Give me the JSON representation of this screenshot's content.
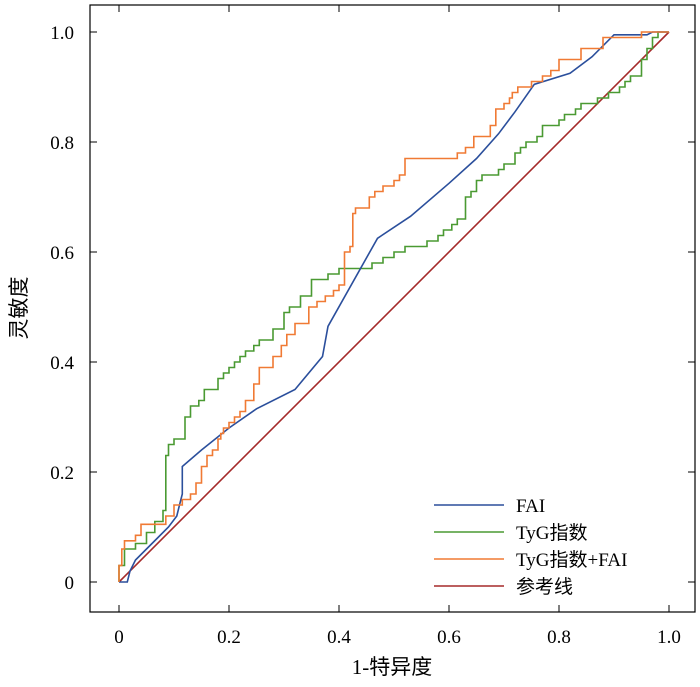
{
  "chart_data": {
    "type": "line",
    "title": "",
    "xlabel": "1-特异度",
    "ylabel": "灵敏度",
    "xlim": [
      0,
      1.0
    ],
    "ylim": [
      0,
      1.0
    ],
    "x_ticks": [
      "0",
      "0.2",
      "0.4",
      "0.6",
      "0.8",
      "1.0"
    ],
    "y_ticks": [
      "0",
      "0.2",
      "0.4",
      "0.6",
      "0.8",
      "1.0"
    ],
    "x_tick_values": [
      0,
      0.2,
      0.4,
      0.6,
      0.8,
      1.0
    ],
    "y_tick_values": [
      0,
      0.2,
      0.4,
      0.6,
      0.8,
      1.0
    ],
    "grid": false,
    "legend_position": "bottom-right",
    "series": [
      {
        "name": "FAI",
        "color": "#2b4f9c",
        "points": [
          [
            0,
            0
          ],
          [
            0.015,
            0
          ],
          [
            0.02,
            0.02
          ],
          [
            0.03,
            0.04
          ],
          [
            0.05,
            0.06
          ],
          [
            0.07,
            0.08
          ],
          [
            0.09,
            0.1
          ],
          [
            0.105,
            0.12
          ],
          [
            0.11,
            0.14
          ],
          [
            0.115,
            0.16
          ],
          [
            0.115,
            0.21
          ],
          [
            0.15,
            0.24
          ],
          [
            0.2,
            0.28
          ],
          [
            0.25,
            0.315
          ],
          [
            0.32,
            0.35
          ],
          [
            0.37,
            0.41
          ],
          [
            0.38,
            0.465
          ],
          [
            0.47,
            0.625
          ],
          [
            0.53,
            0.665
          ],
          [
            0.6,
            0.725
          ],
          [
            0.65,
            0.77
          ],
          [
            0.69,
            0.815
          ],
          [
            0.72,
            0.855
          ],
          [
            0.755,
            0.905
          ],
          [
            0.82,
            0.925
          ],
          [
            0.86,
            0.955
          ],
          [
            0.9,
            0.995
          ],
          [
            0.96,
            0.995
          ],
          [
            0.97,
            1.0
          ],
          [
            1.0,
            1.0
          ]
        ]
      },
      {
        "name": "TyG指数",
        "color": "#4a9a32",
        "points": [
          [
            0,
            0
          ],
          [
            0,
            0.03
          ],
          [
            0.01,
            0.03
          ],
          [
            0.01,
            0.06
          ],
          [
            0.03,
            0.06
          ],
          [
            0.03,
            0.07
          ],
          [
            0.05,
            0.07
          ],
          [
            0.05,
            0.09
          ],
          [
            0.065,
            0.09
          ],
          [
            0.065,
            0.11
          ],
          [
            0.08,
            0.11
          ],
          [
            0.08,
            0.13
          ],
          [
            0.085,
            0.13
          ],
          [
            0.085,
            0.23
          ],
          [
            0.09,
            0.23
          ],
          [
            0.09,
            0.25
          ],
          [
            0.1,
            0.25
          ],
          [
            0.1,
            0.26
          ],
          [
            0.12,
            0.26
          ],
          [
            0.12,
            0.3
          ],
          [
            0.13,
            0.3
          ],
          [
            0.13,
            0.32
          ],
          [
            0.145,
            0.32
          ],
          [
            0.145,
            0.33
          ],
          [
            0.155,
            0.33
          ],
          [
            0.155,
            0.35
          ],
          [
            0.18,
            0.35
          ],
          [
            0.18,
            0.37
          ],
          [
            0.19,
            0.37
          ],
          [
            0.19,
            0.38
          ],
          [
            0.2,
            0.38
          ],
          [
            0.2,
            0.39
          ],
          [
            0.21,
            0.39
          ],
          [
            0.21,
            0.4
          ],
          [
            0.22,
            0.4
          ],
          [
            0.22,
            0.41
          ],
          [
            0.23,
            0.41
          ],
          [
            0.23,
            0.42
          ],
          [
            0.245,
            0.42
          ],
          [
            0.245,
            0.43
          ],
          [
            0.255,
            0.43
          ],
          [
            0.255,
            0.44
          ],
          [
            0.28,
            0.44
          ],
          [
            0.28,
            0.46
          ],
          [
            0.3,
            0.46
          ],
          [
            0.3,
            0.49
          ],
          [
            0.31,
            0.49
          ],
          [
            0.31,
            0.5
          ],
          [
            0.33,
            0.5
          ],
          [
            0.33,
            0.52
          ],
          [
            0.35,
            0.52
          ],
          [
            0.35,
            0.55
          ],
          [
            0.38,
            0.55
          ],
          [
            0.38,
            0.56
          ],
          [
            0.4,
            0.56
          ],
          [
            0.4,
            0.57
          ],
          [
            0.46,
            0.57
          ],
          [
            0.46,
            0.58
          ],
          [
            0.48,
            0.58
          ],
          [
            0.48,
            0.59
          ],
          [
            0.5,
            0.59
          ],
          [
            0.5,
            0.6
          ],
          [
            0.52,
            0.6
          ],
          [
            0.52,
            0.61
          ],
          [
            0.56,
            0.61
          ],
          [
            0.56,
            0.62
          ],
          [
            0.58,
            0.62
          ],
          [
            0.58,
            0.63
          ],
          [
            0.59,
            0.63
          ],
          [
            0.59,
            0.64
          ],
          [
            0.605,
            0.64
          ],
          [
            0.605,
            0.65
          ],
          [
            0.615,
            0.65
          ],
          [
            0.615,
            0.66
          ],
          [
            0.63,
            0.66
          ],
          [
            0.63,
            0.7
          ],
          [
            0.64,
            0.7
          ],
          [
            0.64,
            0.71
          ],
          [
            0.65,
            0.71
          ],
          [
            0.65,
            0.73
          ],
          [
            0.66,
            0.73
          ],
          [
            0.66,
            0.74
          ],
          [
            0.69,
            0.74
          ],
          [
            0.69,
            0.75
          ],
          [
            0.7,
            0.75
          ],
          [
            0.7,
            0.76
          ],
          [
            0.72,
            0.76
          ],
          [
            0.72,
            0.78
          ],
          [
            0.73,
            0.78
          ],
          [
            0.73,
            0.79
          ],
          [
            0.74,
            0.79
          ],
          [
            0.74,
            0.8
          ],
          [
            0.76,
            0.8
          ],
          [
            0.76,
            0.81
          ],
          [
            0.77,
            0.81
          ],
          [
            0.77,
            0.83
          ],
          [
            0.8,
            0.83
          ],
          [
            0.8,
            0.84
          ],
          [
            0.81,
            0.84
          ],
          [
            0.81,
            0.85
          ],
          [
            0.83,
            0.85
          ],
          [
            0.83,
            0.86
          ],
          [
            0.84,
            0.86
          ],
          [
            0.84,
            0.87
          ],
          [
            0.87,
            0.87
          ],
          [
            0.87,
            0.88
          ],
          [
            0.89,
            0.88
          ],
          [
            0.89,
            0.89
          ],
          [
            0.91,
            0.89
          ],
          [
            0.91,
            0.9
          ],
          [
            0.92,
            0.9
          ],
          [
            0.92,
            0.91
          ],
          [
            0.93,
            0.91
          ],
          [
            0.93,
            0.92
          ],
          [
            0.95,
            0.92
          ],
          [
            0.95,
            0.95
          ],
          [
            0.96,
            0.95
          ],
          [
            0.96,
            0.97
          ],
          [
            0.97,
            0.97
          ],
          [
            0.97,
            0.99
          ],
          [
            0.98,
            0.99
          ],
          [
            0.98,
            1.0
          ],
          [
            1.0,
            1.0
          ]
        ]
      },
      {
        "name": "TyG指数+FAI",
        "color": "#f07a34",
        "points": [
          [
            0,
            0
          ],
          [
            0,
            0.03
          ],
          [
            0.005,
            0.03
          ],
          [
            0.005,
            0.06
          ],
          [
            0.01,
            0.06
          ],
          [
            0.01,
            0.075
          ],
          [
            0.03,
            0.075
          ],
          [
            0.03,
            0.085
          ],
          [
            0.04,
            0.085
          ],
          [
            0.04,
            0.105
          ],
          [
            0.085,
            0.105
          ],
          [
            0.085,
            0.12
          ],
          [
            0.1,
            0.12
          ],
          [
            0.1,
            0.14
          ],
          [
            0.115,
            0.14
          ],
          [
            0.115,
            0.15
          ],
          [
            0.13,
            0.15
          ],
          [
            0.13,
            0.16
          ],
          [
            0.14,
            0.16
          ],
          [
            0.14,
            0.18
          ],
          [
            0.15,
            0.18
          ],
          [
            0.15,
            0.21
          ],
          [
            0.16,
            0.21
          ],
          [
            0.16,
            0.23
          ],
          [
            0.17,
            0.23
          ],
          [
            0.17,
            0.24
          ],
          [
            0.18,
            0.24
          ],
          [
            0.18,
            0.26
          ],
          [
            0.185,
            0.26
          ],
          [
            0.185,
            0.27
          ],
          [
            0.19,
            0.27
          ],
          [
            0.19,
            0.28
          ],
          [
            0.2,
            0.28
          ],
          [
            0.2,
            0.29
          ],
          [
            0.21,
            0.29
          ],
          [
            0.21,
            0.3
          ],
          [
            0.22,
            0.3
          ],
          [
            0.22,
            0.31
          ],
          [
            0.23,
            0.31
          ],
          [
            0.23,
            0.33
          ],
          [
            0.245,
            0.33
          ],
          [
            0.245,
            0.36
          ],
          [
            0.255,
            0.36
          ],
          [
            0.255,
            0.39
          ],
          [
            0.28,
            0.39
          ],
          [
            0.28,
            0.41
          ],
          [
            0.295,
            0.41
          ],
          [
            0.295,
            0.43
          ],
          [
            0.305,
            0.43
          ],
          [
            0.305,
            0.45
          ],
          [
            0.32,
            0.45
          ],
          [
            0.32,
            0.47
          ],
          [
            0.345,
            0.47
          ],
          [
            0.345,
            0.5
          ],
          [
            0.36,
            0.5
          ],
          [
            0.36,
            0.51
          ],
          [
            0.375,
            0.51
          ],
          [
            0.375,
            0.52
          ],
          [
            0.39,
            0.52
          ],
          [
            0.39,
            0.53
          ],
          [
            0.4,
            0.53
          ],
          [
            0.4,
            0.54
          ],
          [
            0.41,
            0.54
          ],
          [
            0.41,
            0.6
          ],
          [
            0.42,
            0.6
          ],
          [
            0.42,
            0.61
          ],
          [
            0.425,
            0.61
          ],
          [
            0.425,
            0.67
          ],
          [
            0.43,
            0.67
          ],
          [
            0.43,
            0.68
          ],
          [
            0.455,
            0.68
          ],
          [
            0.455,
            0.7
          ],
          [
            0.465,
            0.7
          ],
          [
            0.465,
            0.71
          ],
          [
            0.48,
            0.71
          ],
          [
            0.48,
            0.72
          ],
          [
            0.5,
            0.72
          ],
          [
            0.5,
            0.73
          ],
          [
            0.51,
            0.73
          ],
          [
            0.51,
            0.74
          ],
          [
            0.52,
            0.74
          ],
          [
            0.52,
            0.77
          ],
          [
            0.615,
            0.77
          ],
          [
            0.615,
            0.78
          ],
          [
            0.63,
            0.78
          ],
          [
            0.63,
            0.79
          ],
          [
            0.645,
            0.79
          ],
          [
            0.645,
            0.81
          ],
          [
            0.675,
            0.81
          ],
          [
            0.675,
            0.83
          ],
          [
            0.685,
            0.83
          ],
          [
            0.685,
            0.86
          ],
          [
            0.7,
            0.86
          ],
          [
            0.7,
            0.87
          ],
          [
            0.71,
            0.87
          ],
          [
            0.71,
            0.88
          ],
          [
            0.715,
            0.88
          ],
          [
            0.715,
            0.89
          ],
          [
            0.725,
            0.89
          ],
          [
            0.725,
            0.9
          ],
          [
            0.75,
            0.9
          ],
          [
            0.75,
            0.91
          ],
          [
            0.77,
            0.91
          ],
          [
            0.77,
            0.92
          ],
          [
            0.785,
            0.92
          ],
          [
            0.785,
            0.93
          ],
          [
            0.8,
            0.93
          ],
          [
            0.8,
            0.95
          ],
          [
            0.84,
            0.95
          ],
          [
            0.84,
            0.97
          ],
          [
            0.88,
            0.97
          ],
          [
            0.88,
            0.98
          ],
          [
            0.88,
            0.99
          ],
          [
            0.95,
            0.99
          ],
          [
            0.95,
            1.0
          ],
          [
            1.0,
            1.0
          ]
        ]
      },
      {
        "name": "参考线",
        "color": "#a52a2a",
        "points": [
          [
            0,
            0
          ],
          [
            1,
            1
          ]
        ]
      }
    ]
  }
}
